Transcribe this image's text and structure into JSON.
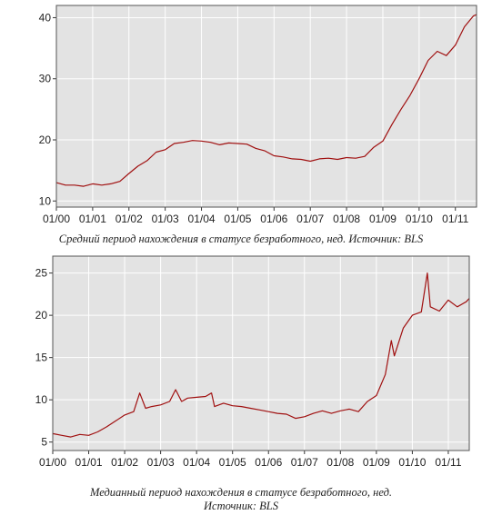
{
  "chart_data": [
    {
      "type": "line",
      "title": "",
      "caption": "Средний период нахождения в статусе безработного, нед. Источник: BLS",
      "x_tick_labels": [
        "01/00",
        "01/01",
        "01/02",
        "01/03",
        "01/04",
        "01/05",
        "01/06",
        "01/07",
        "01/08",
        "01/09",
        "01/10",
        "01/11"
      ],
      "y_ticks": [
        10,
        20,
        30,
        40
      ],
      "xlim": [
        "2000-01",
        "2011-08"
      ],
      "ylim": [
        9,
        42
      ],
      "grid": true,
      "line_color": "#a01010",
      "background_color": "#e3e3e3",
      "series": [
        {
          "x": [
            "2000-01",
            "2000-04",
            "2000-07",
            "2000-10",
            "2001-01",
            "2001-04",
            "2001-07",
            "2001-10",
            "2002-01",
            "2002-04",
            "2002-07",
            "2002-10",
            "2003-01",
            "2003-04",
            "2003-07",
            "2003-10",
            "2004-01",
            "2004-04",
            "2004-07",
            "2004-10",
            "2005-01",
            "2005-04",
            "2005-07",
            "2005-10",
            "2006-01",
            "2006-04",
            "2006-07",
            "2006-10",
            "2007-01",
            "2007-04",
            "2007-07",
            "2007-10",
            "2008-01",
            "2008-04",
            "2008-07",
            "2008-10",
            "2009-01",
            "2009-04",
            "2009-07",
            "2009-10",
            "2010-01",
            "2010-04",
            "2010-07",
            "2010-10",
            "2011-01",
            "2011-04",
            "2011-07",
            "2011-08"
          ],
          "values": [
            13,
            12.6,
            12.6,
            12.4,
            12.8,
            12.6,
            12.8,
            13.2,
            14.5,
            15.7,
            16.6,
            18.0,
            18.4,
            19.4,
            19.6,
            19.9,
            19.8,
            19.6,
            19.2,
            19.5,
            19.4,
            19.3,
            18.6,
            18.2,
            17.4,
            17.2,
            16.9,
            16.8,
            16.5,
            16.9,
            17.0,
            16.8,
            17.1,
            17.0,
            17.3,
            18.8,
            19.8,
            22.5,
            25.0,
            27.3,
            30.0,
            33.0,
            34.5,
            33.8,
            35.5,
            38.5,
            40.3,
            40.5
          ]
        }
      ]
    },
    {
      "type": "line",
      "title": "",
      "caption_line1": "Медианный период нахождения в статусе безработного, нед.",
      "caption_line2": "Источник: BLS",
      "x_tick_labels": [
        "01/00",
        "01/01",
        "01/02",
        "01/03",
        "01/04",
        "01/05",
        "01/06",
        "01/07",
        "01/08",
        "01/09",
        "01/10",
        "01/11"
      ],
      "y_ticks": [
        5,
        10,
        15,
        20,
        25
      ],
      "xlim": [
        "2000-01",
        "2011-08"
      ],
      "ylim": [
        4,
        27
      ],
      "grid": true,
      "line_color": "#a01010",
      "background_color": "#e3e3e3",
      "series": [
        {
          "x": [
            "2000-01",
            "2000-04",
            "2000-07",
            "2000-10",
            "2001-01",
            "2001-04",
            "2001-07",
            "2001-10",
            "2002-01",
            "2002-04",
            "2002-06",
            "2002-08",
            "2002-10",
            "2003-01",
            "2003-04",
            "2003-06",
            "2003-08",
            "2003-10",
            "2004-01",
            "2004-04",
            "2004-06",
            "2004-07",
            "2004-10",
            "2005-01",
            "2005-04",
            "2005-07",
            "2005-10",
            "2006-01",
            "2006-04",
            "2006-07",
            "2006-10",
            "2007-01",
            "2007-04",
            "2007-07",
            "2007-10",
            "2008-01",
            "2008-04",
            "2008-07",
            "2008-10",
            "2009-01",
            "2009-04",
            "2009-06",
            "2009-07",
            "2009-10",
            "2010-01",
            "2010-04",
            "2010-06",
            "2010-07",
            "2010-10",
            "2011-01",
            "2011-04",
            "2011-07",
            "2011-08"
          ],
          "values": [
            6.0,
            5.8,
            5.6,
            5.9,
            5.8,
            6.2,
            6.8,
            7.5,
            8.2,
            8.6,
            10.8,
            9.0,
            9.2,
            9.4,
            9.8,
            11.2,
            9.8,
            10.2,
            10.3,
            10.4,
            10.8,
            9.2,
            9.6,
            9.3,
            9.2,
            9.0,
            8.8,
            8.6,
            8.4,
            8.3,
            7.8,
            8.0,
            8.4,
            8.7,
            8.4,
            8.7,
            8.9,
            8.6,
            9.8,
            10.5,
            13.0,
            17.0,
            15.2,
            18.5,
            20.0,
            20.4,
            25.0,
            21.0,
            20.5,
            21.8,
            21.0,
            21.6,
            22.0
          ]
        }
      ]
    }
  ]
}
